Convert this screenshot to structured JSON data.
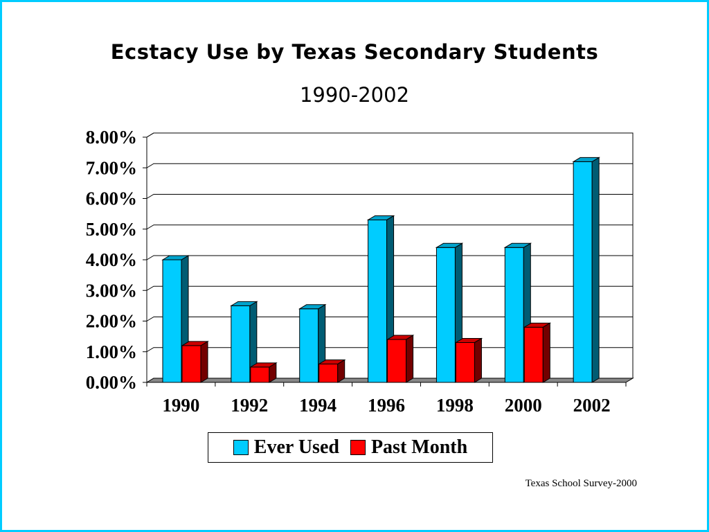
{
  "chart_data": {
    "type": "bar",
    "title": "Ecstacy Use by Texas Secondary Students",
    "subtitle": "1990-2002",
    "categories": [
      "1990",
      "1992",
      "1994",
      "1996",
      "1998",
      "2000",
      "2002"
    ],
    "series": [
      {
        "name": "Ever Used",
        "values": [
          4.0,
          2.5,
          2.4,
          5.3,
          4.4,
          4.4,
          7.2
        ],
        "color": "#00ccff"
      },
      {
        "name": "Past Month",
        "values": [
          1.2,
          0.5,
          0.6,
          1.4,
          1.3,
          1.8,
          null
        ],
        "color": "#ff0000"
      }
    ],
    "yticks": [
      "0.00%",
      "1.00%",
      "2.00%",
      "3.00%",
      "4.00%",
      "5.00%",
      "6.00%",
      "7.00%",
      "8.00%"
    ],
    "ylim": [
      0,
      8
    ],
    "grid": true,
    "legend_position": "bottom",
    "source": "Texas School Survey-2000"
  }
}
